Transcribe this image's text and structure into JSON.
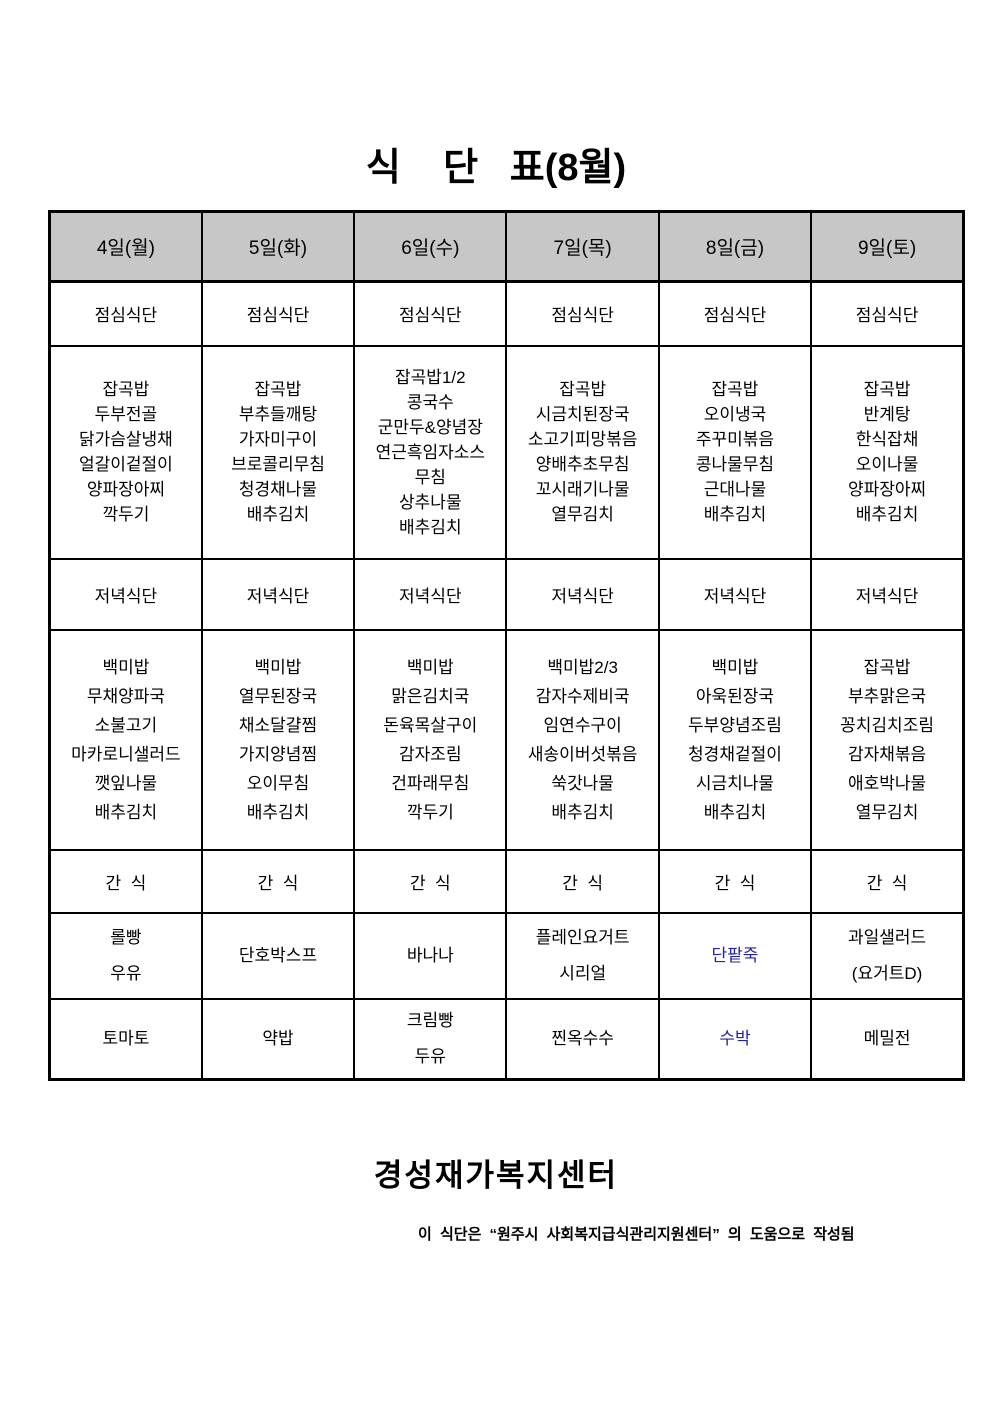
{
  "title": "식    단   표(8월)",
  "labels": {
    "lunch": "점심식단",
    "dinner": "저녁식단",
    "snack": "간  식"
  },
  "days": [
    {
      "date": "4일(월)",
      "lunch": [
        "잡곡밥",
        "두부전골",
        "닭가슴살냉채",
        "얼갈이겉절이",
        "양파장아찌",
        "깍두기"
      ],
      "dinner": [
        "백미밥",
        "무채양파국",
        "소불고기",
        "마카로니샐러드",
        "깻잎나물",
        "배추김치"
      ],
      "snack1": [
        "롤빵",
        "우유"
      ],
      "snack2": [
        "토마토"
      ]
    },
    {
      "date": "5일(화)",
      "lunch": [
        "잡곡밥",
        "부추들깨탕",
        "가자미구이",
        "브로콜리무침",
        "청경채나물",
        "배추김치"
      ],
      "dinner": [
        "백미밥",
        "열무된장국",
        "채소달걀찜",
        "가지양념찜",
        "오이무침",
        "배추김치"
      ],
      "snack1": [
        "단호박스프"
      ],
      "snack2": [
        "약밥"
      ]
    },
    {
      "date": "6일(수)",
      "lunch": [
        "잡곡밥1/2",
        "콩국수",
        "군만두&양념장",
        "연근흑임자소스",
        "무침",
        "상추나물",
        "배추김치"
      ],
      "dinner": [
        "백미밥",
        "맑은김치국",
        "돈육목살구이",
        "감자조림",
        "건파래무침",
        "깍두기"
      ],
      "snack1": [
        "바나나"
      ],
      "snack2": [
        "크림빵",
        "두유"
      ]
    },
    {
      "date": "7일(목)",
      "lunch": [
        "잡곡밥",
        "시금치된장국",
        "소고기피망볶음",
        "양배추초무침",
        "꼬시래기나물",
        "열무김치"
      ],
      "dinner": [
        "백미밥2/3",
        "감자수제비국",
        "임연수구이",
        "새송이버섯볶음",
        "쑥갓나물",
        "배추김치"
      ],
      "snack1": [
        "플레인요거트",
        "시리얼"
      ],
      "snack2": [
        "찐옥수수"
      ]
    },
    {
      "date": "8일(금)",
      "lunch": [
        "잡곡밥",
        "오이냉국",
        "주꾸미볶음",
        "콩나물무침",
        "근대나물",
        "배추김치"
      ],
      "dinner": [
        "백미밥",
        "아욱된장국",
        "두부양념조림",
        "청경채겉절이",
        "시금치나물",
        "배추김치"
      ],
      "snack1": [
        {
          "text": "단팥죽",
          "color": "#2222aa"
        }
      ],
      "snack2": [
        {
          "text": "수박",
          "color": "#2222aa"
        }
      ]
    },
    {
      "date": "9일(토)",
      "lunch": [
        "잡곡밥",
        "반계탕",
        "한식잡채",
        "오이나물",
        "양파장아찌",
        "배추김치"
      ],
      "dinner": [
        "잡곡밥",
        "부추맑은국",
        "꽁치김치조림",
        "감자채볶음",
        "애호박나물",
        "열무김치"
      ],
      "snack1": [
        "과일샐러드",
        "(요거트D)"
      ],
      "snack2": [
        "메밀전"
      ]
    }
  ],
  "footer": {
    "center_name": "경성재가복지센터",
    "note": "이 식단은  “원주시 사회복지급식관리지원센터” 의 도움으로 작성됨"
  },
  "colors": {
    "header_bg": "#c7c7c7",
    "accent_blue": "#2222aa",
    "border": "#000000"
  }
}
